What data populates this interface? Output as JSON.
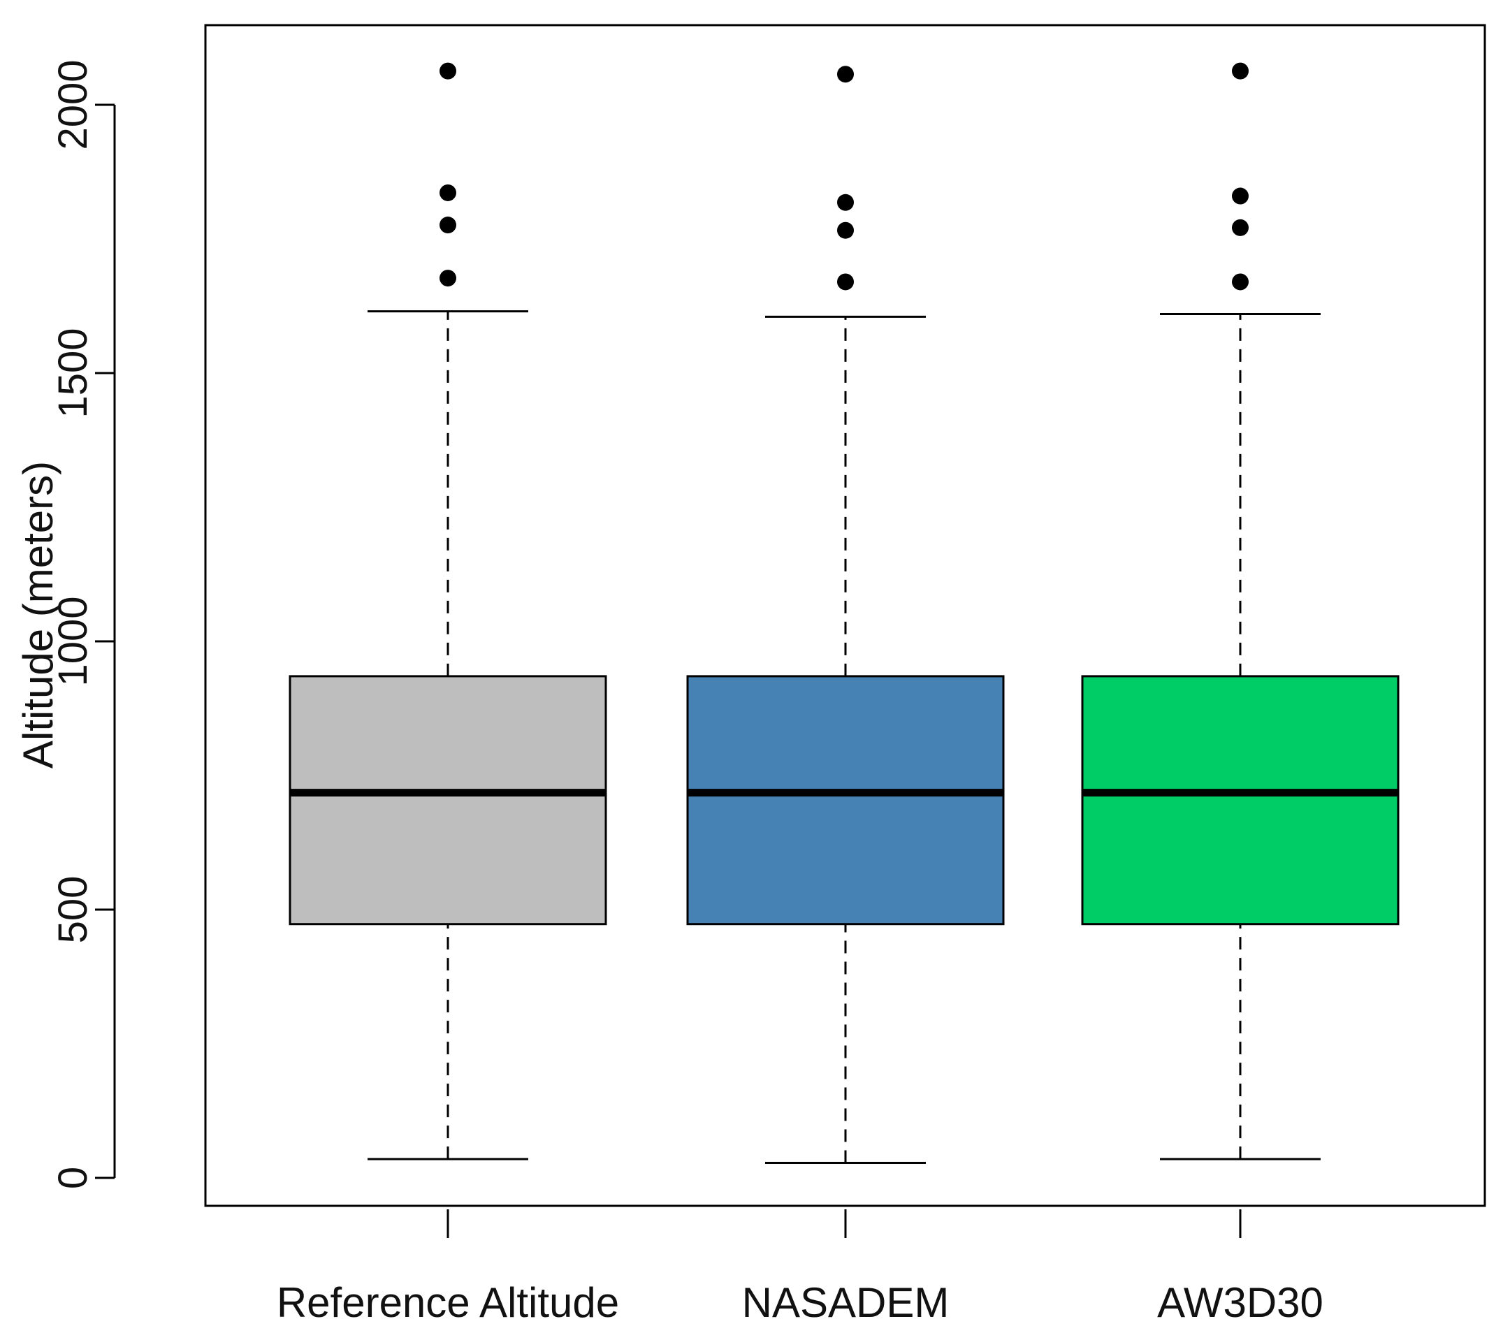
{
  "chart_data": {
    "type": "boxplot",
    "title": "",
    "xlabel": "",
    "ylabel": "Altitude (meters)",
    "ylim": [
      -40,
      2150
    ],
    "y_ticks": [
      0,
      500,
      1000,
      1500,
      2000
    ],
    "y_tick_labels": [
      "0",
      "500",
      "1000",
      "1500",
      "2000"
    ],
    "grid": false,
    "legend": "none",
    "categories": [
      "Reference Altitude",
      "NASADEM",
      "AW3D30"
    ],
    "series": [
      {
        "category": "Reference Altitude",
        "color": "#bebebe",
        "whisker_low": 35,
        "q1": 473,
        "median": 718,
        "q3": 935,
        "whisker_high": 1615,
        "outliers": [
          1677,
          1776,
          1836,
          2063
        ]
      },
      {
        "category": "NASADEM",
        "color": "#4682b4",
        "whisker_low": 28,
        "q1": 473,
        "median": 718,
        "q3": 935,
        "whisker_high": 1605,
        "outliers": [
          1670,
          1766,
          1818,
          2057
        ]
      },
      {
        "category": "AW3D30",
        "color": "#00cd66",
        "whisker_low": 35,
        "q1": 473,
        "median": 718,
        "q3": 935,
        "whisker_high": 1610,
        "outliers": [
          1670,
          1771,
          1830,
          2063
        ]
      }
    ]
  }
}
